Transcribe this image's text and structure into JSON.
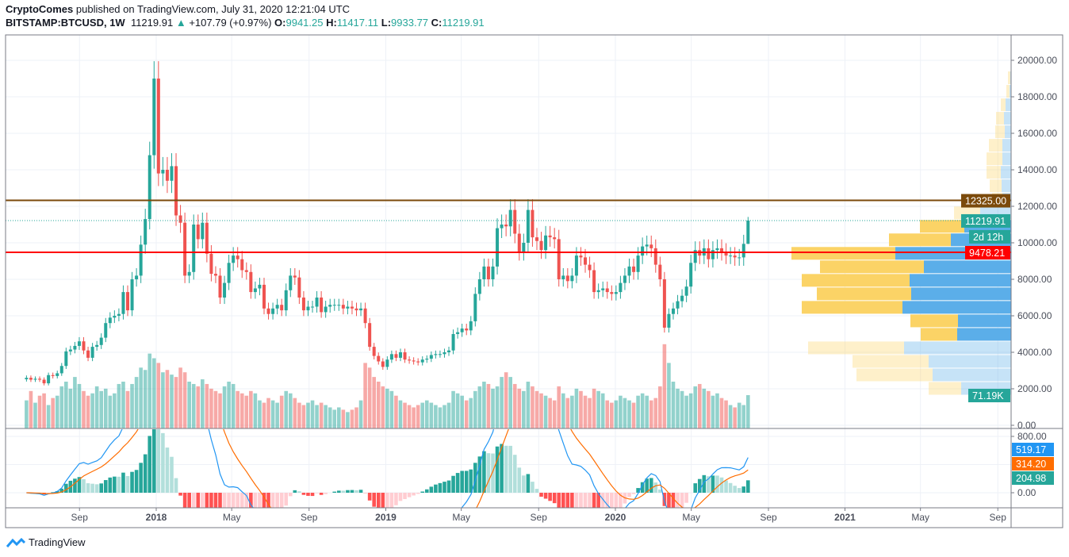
{
  "header": {
    "author": "CryptoComes",
    "published": "published on TradingView.com, July 31, 2020 12:21:04 UTC",
    "symbol": "BITSTAMP:BTCUSD, 1W",
    "last": "11219.91",
    "change": "+107.79 (+0.97%)",
    "o_label": "O:",
    "o": "9941.25",
    "h_label": "H:",
    "h": "11417.11",
    "l_label": "L:",
    "l": "9933.77",
    "c_label": "C:",
    "c": "11219.91"
  },
  "footer": {
    "brand": "TradingView"
  },
  "colors": {
    "up": "#26a69a",
    "down": "#ef5350",
    "resistance": "#7b4a0b",
    "support": "#ff0000",
    "macd": "#2196f3",
    "signal": "#ff6d00",
    "profile_up": "#5baee9",
    "profile_down": "#fbd366"
  },
  "chart_data": {
    "type": "candlestick",
    "interval": "1W",
    "last_week": "2020-07-27",
    "closes": [
      2600,
      2500,
      2550,
      2500,
      2300,
      2750,
      2700,
      2850,
      3250,
      4050,
      4150,
      4350,
      4600,
      4100,
      3700,
      4300,
      4400,
      4800,
      5600,
      5900,
      6000,
      6100,
      7300,
      6300,
      8000,
      8200,
      9900,
      11300,
      14800,
      19000,
      13800,
      14000,
      13400,
      14200,
      11500,
      11100,
      8200,
      8400,
      11000,
      10200,
      11100,
      9400,
      8300,
      8200,
      7000,
      7800,
      8900,
      9300,
      9100,
      8500,
      8400,
      7300,
      7500,
      7700,
      6400,
      6100,
      6400,
      6600,
      6300,
      7400,
      8200,
      8100,
      7000,
      6300,
      6500,
      6500,
      7000,
      6200,
      6500,
      6600,
      6600,
      6600,
      6400,
      6500,
      6400,
      6300,
      6400,
      5600,
      4300,
      3800,
      3500,
      3200,
      3600,
      3900,
      3700,
      4000,
      3600,
      3550,
      3500,
      3450,
      3600,
      3650,
      3850,
      3900,
      3900,
      4000,
      4100,
      5000,
      5100,
      5300,
      5200,
      5700,
      7200,
      8000,
      8700,
      8000,
      8700,
      10800,
      11000,
      10900,
      11800,
      10500,
      9500,
      10000,
      11800,
      10300,
      10100,
      9600,
      10400,
      10300,
      10200,
      8000,
      8200,
      7900,
      8200,
      9300,
      9200,
      8800,
      8500,
      7300,
      7400,
      7500,
      7300,
      7200,
      7300,
      7800,
      8200,
      8700,
      8400,
      9300,
      9800,
      9900,
      9700,
      8800,
      8000,
      5350,
      6100,
      6400,
      6800,
      7100,
      7600,
      8900,
      9600,
      9300,
      9700,
      9100,
      9600,
      9700,
      9500,
      9300,
      9300,
      9200,
      9200,
      9941.25,
      11219.91
    ],
    "last_candle": {
      "open": 9941.25,
      "high": 11417.11,
      "low": 9933.77,
      "close": 11219.91
    },
    "volume_k": [
      95,
      60,
      80,
      55,
      70,
      75,
      50,
      65,
      70,
      90,
      100,
      85,
      110,
      95,
      80,
      70,
      75,
      90,
      80,
      85,
      70,
      75,
      95,
      100,
      80,
      95,
      110,
      130,
      125,
      160,
      150,
      140,
      120,
      125,
      115,
      110,
      130,
      120,
      100,
      95,
      90,
      105,
      95,
      85,
      80,
      75,
      90,
      100,
      95,
      80,
      75,
      70,
      80,
      75,
      60,
      55,
      65,
      60,
      55,
      70,
      80,
      75,
      65,
      55,
      50,
      55,
      60,
      50,
      55,
      50,
      45,
      40,
      45,
      40,
      35,
      40,
      45,
      60,
      140,
      130,
      110,
      100,
      90,
      85,
      80,
      70,
      60,
      55,
      50,
      45,
      50,
      55,
      60,
      55,
      50,
      45,
      50,
      55,
      80,
      75,
      70,
      60,
      65,
      80,
      90,
      100,
      95,
      85,
      90,
      110,
      120,
      110,
      95,
      85,
      80,
      100,
      90,
      80,
      75,
      70,
      65,
      60,
      90,
      75,
      65,
      70,
      85,
      80,
      70,
      65,
      85,
      80,
      75,
      60,
      55,
      60,
      70,
      65,
      60,
      55,
      70,
      75,
      70,
      60,
      65,
      90,
      180,
      140,
      100,
      85,
      80,
      70,
      75,
      90,
      95,
      85,
      80,
      70,
      75,
      65,
      60,
      50,
      45,
      55,
      50,
      71.19
    ],
    "price_axis": {
      "ticks": [
        0,
        2000,
        4000,
        6000,
        8000,
        10000,
        12000,
        14000,
        16000,
        18000,
        20000
      ],
      "tick_labels": [
        "0.00",
        "2000.00",
        "4000.00",
        "6000.00",
        "8000.00",
        "10000.00",
        "12000.00",
        "14000.00",
        "16000.00",
        "18000.00",
        "20000.00"
      ]
    },
    "macd_axis": {
      "tick_labels": [
        "800.00",
        "0.00"
      ],
      "ticks": [
        800,
        0
      ]
    },
    "time_axis": [
      {
        "label": "Sep",
        "date": "2017-09-01"
      },
      {
        "label": "2018",
        "date": "2018-01-01"
      },
      {
        "label": "May",
        "date": "2018-05-01"
      },
      {
        "label": "Sep",
        "date": "2018-09-01"
      },
      {
        "label": "2019",
        "date": "2019-01-01"
      },
      {
        "label": "May",
        "date": "2019-05-01"
      },
      {
        "label": "Sep",
        "date": "2019-09-01"
      },
      {
        "label": "2020",
        "date": "2020-01-01"
      },
      {
        "label": "May",
        "date": "2020-05-01"
      },
      {
        "label": "Sep",
        "date": "2020-09-01"
      },
      {
        "label": "2021",
        "date": "2021-01-01"
      },
      {
        "label": "May",
        "date": "2021-05-01"
      },
      {
        "label": "Sep",
        "date": "2021-09-01"
      }
    ],
    "levels": [
      {
        "name": "resistance",
        "price": 12325.0,
        "label": "12325.00"
      },
      {
        "name": "support",
        "price": 9478.21,
        "label": "9478.21"
      }
    ],
    "labels": {
      "last_price": "11219.91",
      "countdown": "2d 12h",
      "volume": "71.19K",
      "macd": "519.17",
      "signal": "314.20",
      "histogram": "204.98"
    },
    "volume_profile": {
      "row_low_start": 1652,
      "row_size": 740,
      "value_area_rows": [
        4,
        12
      ],
      "rows": [
        [
          41,
          63
        ],
        [
          96,
          99
        ],
        [
          96,
          104
        ],
        [
          121,
          135
        ],
        [
          46,
          68
        ],
        [
          60,
          67
        ],
        [
          127,
          137
        ],
        [
          119,
          126
        ],
        [
          136,
          128
        ],
        [
          131,
          110
        ],
        [
          131,
          146
        ],
        [
          78,
          76
        ],
        [
          56,
          59
        ],
        [
          33,
          39
        ],
        [
          13,
          11
        ],
        [
          15,
          12
        ],
        [
          18,
          13
        ],
        [
          20,
          11
        ],
        [
          17,
          11
        ],
        [
          12,
          8
        ],
        [
          10,
          9
        ],
        [
          6,
          7
        ],
        [
          4,
          2
        ],
        [
          3,
          1
        ]
      ]
    }
  }
}
